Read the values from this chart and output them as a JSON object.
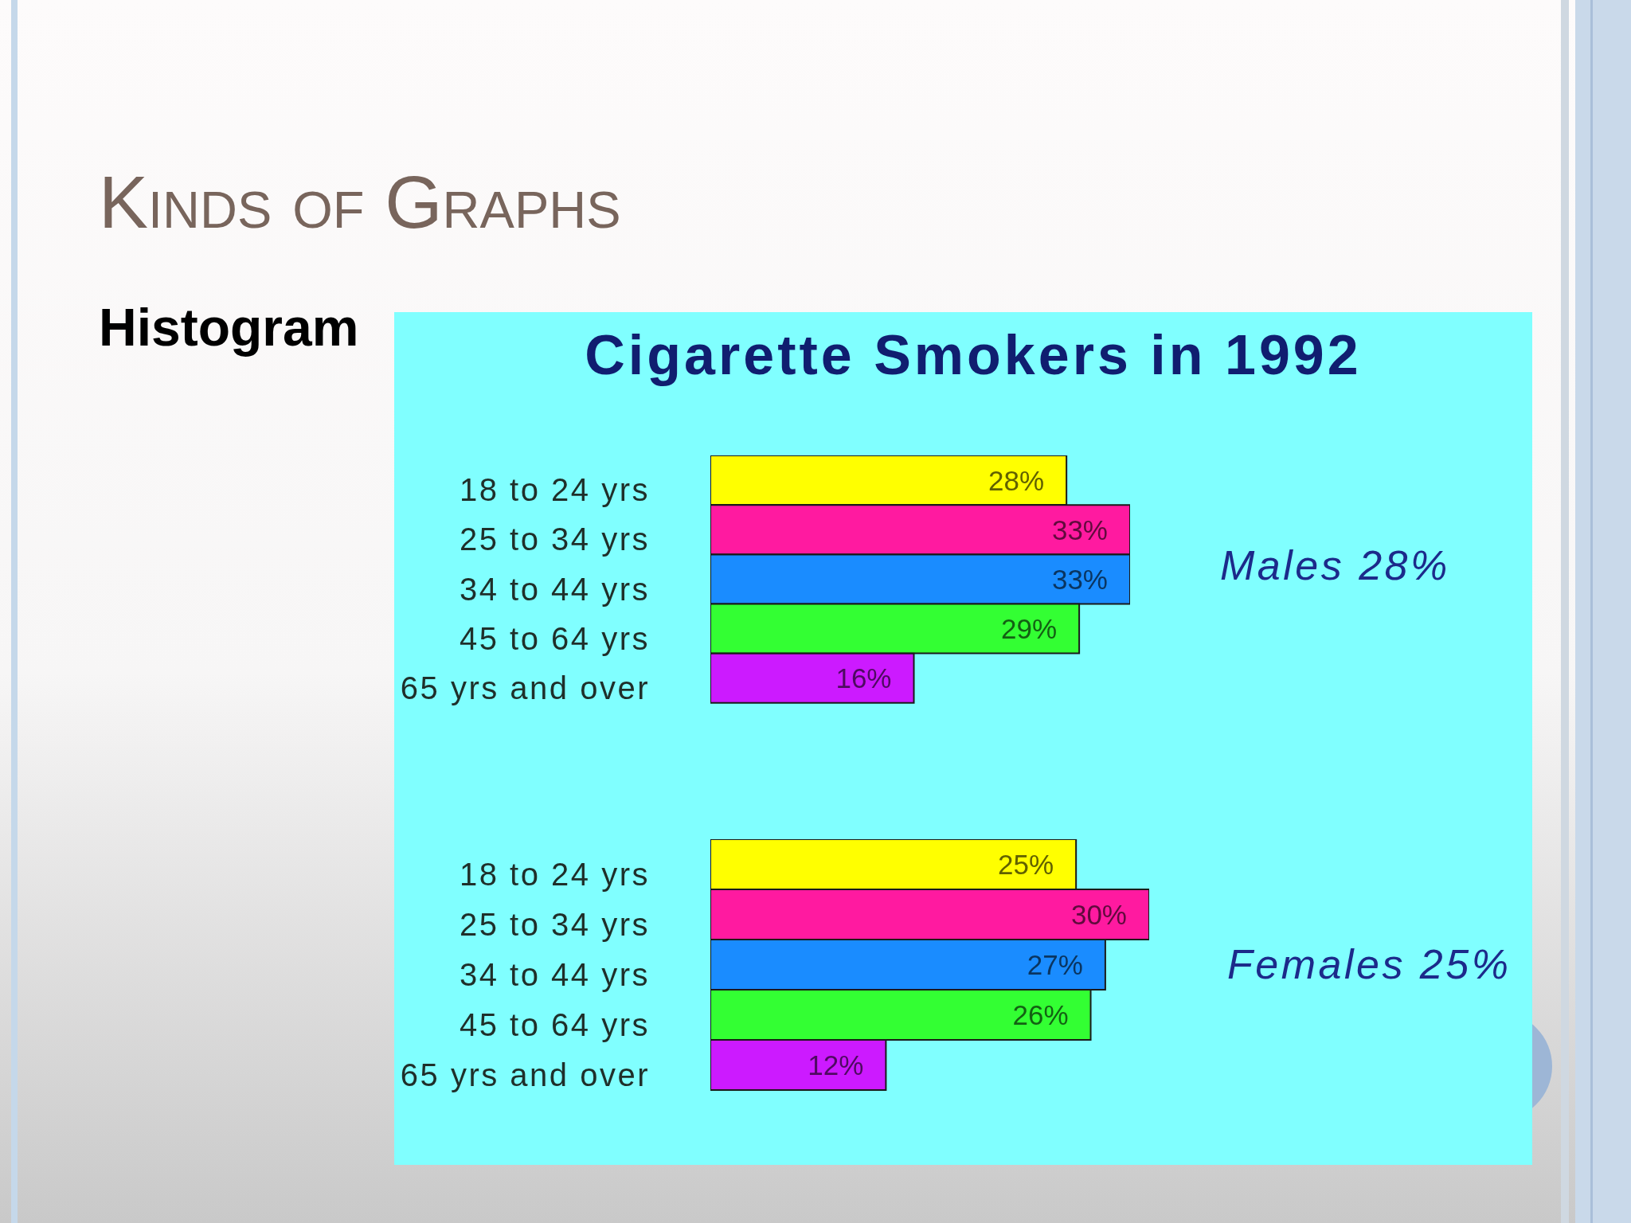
{
  "chart_data": [
    {
      "type": "bar",
      "orientation": "horizontal",
      "title": "Cigarette Smokers in 1992",
      "categories": [
        "18 to 24 yrs",
        "25 to 34 yrs",
        "34 to 44 yrs",
        "45 to 64 yrs",
        "65 yrs and over"
      ],
      "values": [
        28,
        33,
        33,
        29,
        16
      ],
      "colors": [
        "#ffff00",
        "#ff1aa0",
        "#1a8cff",
        "#33ff33",
        "#cc1aff"
      ],
      "value_labels": [
        "28%",
        "33%",
        "33%",
        "29%",
        "16%"
      ],
      "tick_labels": "y",
      "annotations": [
        "Kinds of Graphs",
        "Histogram",
        "Males 28%"
      ]
    },
    {
      "type": "bar",
      "orientation": "horizontal",
      "categories": [
        "18 to 24 yrs",
        "25 to 34 yrs",
        "34 to 44 yrs",
        "45 to 64 yrs",
        "65 yrs and over"
      ],
      "values": [
        25,
        30,
        27,
        26,
        12
      ],
      "colors": [
        "#ffff00",
        "#ff1aa0",
        "#1a8cff",
        "#33ff33",
        "#cc1aff"
      ],
      "value_labels": [
        "25%",
        "30%",
        "27%",
        "26%",
        "12%"
      ],
      "tick_labels": "y",
      "annotations": [
        "Females 25%"
      ]
    }
  ]
}
